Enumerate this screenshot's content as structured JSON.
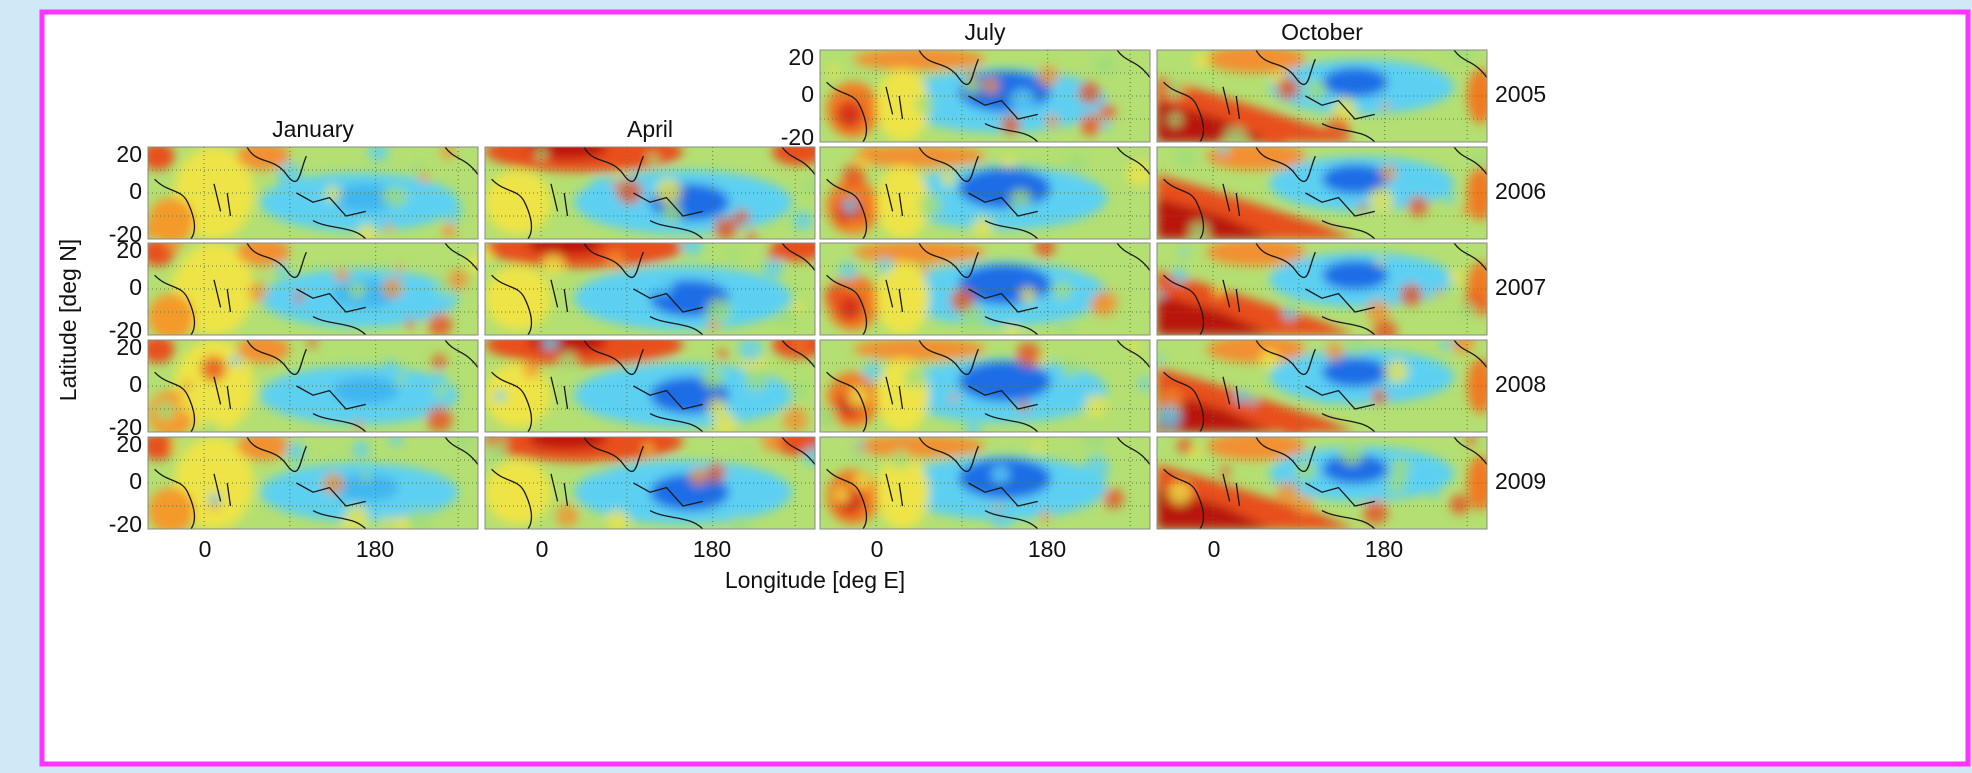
{
  "figure": {
    "columns": [
      "January",
      "April",
      "July",
      "October"
    ],
    "years": [
      "2005",
      "2006",
      "2007",
      "2008",
      "2009"
    ],
    "y_ticks": [
      20,
      0,
      -20
    ],
    "x_ticks": [
      0,
      180
    ],
    "x_label": "Longitude [deg E]",
    "y_label": "Latitude [deg N]"
  }
}
